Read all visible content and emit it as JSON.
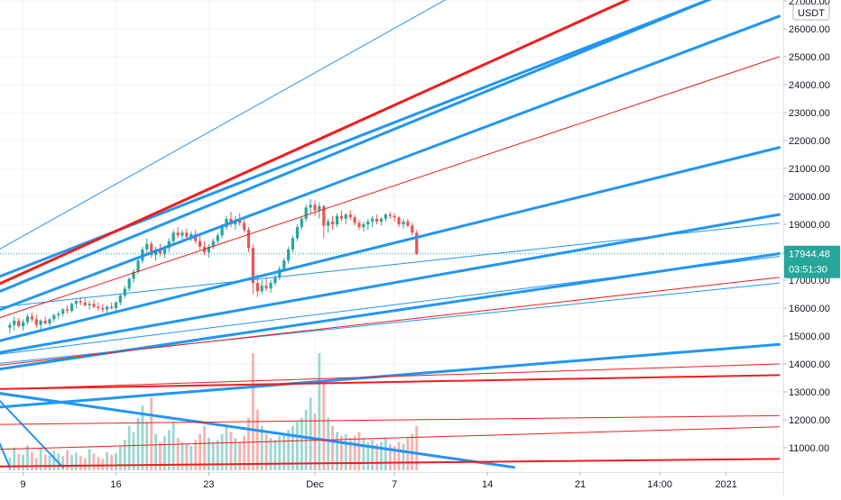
{
  "chart_data": {
    "type": "candlestick",
    "symbol_quote": "USDT",
    "y_ticks": [
      "27000.00",
      "26000.00",
      "25000.00",
      "24000.00",
      "23000.00",
      "22000.00",
      "21000.00",
      "20000.00",
      "19000.00",
      "18000.00",
      "17000.00",
      "16000.00",
      "15000.00",
      "14000.00",
      "13000.00",
      "12000.00",
      "11000.00"
    ],
    "ylim": [
      10200,
      27300
    ],
    "x_ticks": [
      {
        "label": "9",
        "day": 9
      },
      {
        "label": "16",
        "day": 16
      },
      {
        "label": "23",
        "day": 23
      },
      {
        "label": "Dec",
        "day": 31
      },
      {
        "label": "7",
        "day": 37
      },
      {
        "label": "14",
        "day": 44
      },
      {
        "label": "21",
        "day": 51
      },
      {
        "label": "14:00",
        "day": 57
      },
      {
        "label": "2021",
        "day": 62
      }
    ],
    "x_axis_note": "day = days since Nov 1, 2020",
    "last_price": "17944.48",
    "last_price_value": 17944.48,
    "countdown": "03:51:30",
    "grid": true,
    "colors": {
      "up": "#26a69a",
      "down": "#ef5350",
      "blue_line": "#2196f3",
      "red_line": "#f21c1c",
      "last_price_label": "#26a69a",
      "grid": "#f0f3fa",
      "axis_text": "#131722"
    },
    "ohlc": [
      [
        8.0,
        15300,
        15500,
        15100,
        15400
      ],
      [
        8.33,
        15400,
        15700,
        15200,
        15550
      ],
      [
        8.67,
        15550,
        15650,
        15300,
        15350
      ],
      [
        9.0,
        15350,
        15600,
        15200,
        15500
      ],
      [
        9.33,
        15500,
        15800,
        15400,
        15700
      ],
      [
        9.67,
        15700,
        15850,
        15500,
        15600
      ],
      [
        10.0,
        15600,
        15750,
        15300,
        15400
      ],
      [
        10.33,
        15400,
        15600,
        15200,
        15550
      ],
      [
        10.67,
        15550,
        15700,
        15400,
        15450
      ],
      [
        11.0,
        15450,
        15650,
        15350,
        15600
      ],
      [
        11.33,
        15600,
        15800,
        15500,
        15750
      ],
      [
        11.67,
        15750,
        15900,
        15600,
        15800
      ],
      [
        12.0,
        15800,
        16000,
        15700,
        15950
      ],
      [
        12.33,
        15950,
        16100,
        15800,
        15900
      ],
      [
        12.67,
        15900,
        16200,
        15850,
        16150
      ],
      [
        13.0,
        16150,
        16300,
        16000,
        16250
      ],
      [
        13.33,
        16250,
        16400,
        16100,
        16200
      ],
      [
        13.67,
        16200,
        16350,
        16050,
        16100
      ],
      [
        14.0,
        16100,
        16250,
        15950,
        16150
      ],
      [
        14.33,
        16150,
        16300,
        16000,
        16050
      ],
      [
        14.67,
        16050,
        16200,
        15900,
        16000
      ],
      [
        15.0,
        16000,
        16150,
        15850,
        15950
      ],
      [
        15.33,
        15950,
        16100,
        15800,
        16050
      ],
      [
        15.67,
        16050,
        16200,
        15950,
        16000
      ],
      [
        16.0,
        16000,
        16250,
        15900,
        16200
      ],
      [
        16.33,
        16200,
        16500,
        16100,
        16450
      ],
      [
        16.67,
        16450,
        16800,
        16350,
        16700
      ],
      [
        17.0,
        16700,
        17100,
        16600,
        17050
      ],
      [
        17.33,
        17050,
        17400,
        16900,
        17300
      ],
      [
        17.67,
        17300,
        17800,
        17200,
        17700
      ],
      [
        18.0,
        17700,
        18200,
        17600,
        18100
      ],
      [
        18.33,
        18100,
        18500,
        17900,
        18300
      ],
      [
        18.67,
        18300,
        18400,
        17800,
        17900
      ],
      [
        19.0,
        17900,
        18200,
        17700,
        18100
      ],
      [
        19.33,
        18100,
        18300,
        17850,
        17950
      ],
      [
        19.67,
        17950,
        18250,
        17800,
        18150
      ],
      [
        20.0,
        18150,
        18500,
        18000,
        18400
      ],
      [
        20.33,
        18400,
        18800,
        18300,
        18700
      ],
      [
        20.67,
        18700,
        18900,
        18500,
        18600
      ],
      [
        21.0,
        18600,
        18800,
        18450,
        18700
      ],
      [
        21.33,
        18700,
        18850,
        18500,
        18550
      ],
      [
        21.67,
        18550,
        18750,
        18400,
        18650
      ],
      [
        22.0,
        18650,
        18800,
        18300,
        18400
      ],
      [
        22.33,
        18400,
        18600,
        18100,
        18200
      ],
      [
        22.67,
        18200,
        18400,
        17900,
        18000
      ],
      [
        23.0,
        18000,
        18300,
        17800,
        18200
      ],
      [
        23.33,
        18200,
        18500,
        18100,
        18400
      ],
      [
        23.67,
        18400,
        18700,
        18300,
        18600
      ],
      [
        24.0,
        18600,
        19000,
        18500,
        18900
      ],
      [
        24.33,
        18900,
        19300,
        18800,
        19200
      ],
      [
        24.67,
        19200,
        19450,
        18900,
        19000
      ],
      [
        25.0,
        19000,
        19300,
        18800,
        19150
      ],
      [
        25.33,
        19150,
        19400,
        18950,
        19050
      ],
      [
        25.67,
        19050,
        19200,
        18700,
        18800
      ],
      [
        26.0,
        18800,
        18900,
        18000,
        18150
      ],
      [
        26.33,
        18150,
        18300,
        16500,
        16900
      ],
      [
        26.67,
        16900,
        17200,
        16400,
        16600
      ],
      [
        27.0,
        16600,
        17000,
        16500,
        16800
      ],
      [
        27.33,
        16800,
        17100,
        16600,
        16700
      ],
      [
        27.67,
        16700,
        17000,
        16550,
        16900
      ],
      [
        28.0,
        16900,
        17200,
        16800,
        17100
      ],
      [
        28.33,
        17100,
        17500,
        17000,
        17400
      ],
      [
        28.67,
        17400,
        17800,
        17300,
        17700
      ],
      [
        29.0,
        17700,
        18200,
        17600,
        18100
      ],
      [
        29.33,
        18100,
        18600,
        18000,
        18500
      ],
      [
        29.67,
        18500,
        19000,
        18400,
        18900
      ],
      [
        30.0,
        18900,
        19300,
        18800,
        19200
      ],
      [
        30.33,
        19200,
        19700,
        19100,
        19600
      ],
      [
        30.67,
        19600,
        19900,
        19400,
        19700
      ],
      [
        31.0,
        19700,
        19850,
        19300,
        19500
      ],
      [
        31.33,
        19500,
        19800,
        19200,
        19650
      ],
      [
        31.67,
        19650,
        19700,
        18500,
        18950
      ],
      [
        32.0,
        18950,
        19200,
        18700,
        19100
      ],
      [
        32.33,
        19100,
        19300,
        18800,
        19000
      ],
      [
        32.67,
        19000,
        19400,
        18900,
        19300
      ],
      [
        33.0,
        19300,
        19500,
        19100,
        19200
      ],
      [
        33.33,
        19200,
        19400,
        19000,
        19350
      ],
      [
        33.67,
        19350,
        19500,
        19150,
        19250
      ],
      [
        34.0,
        19250,
        19350,
        18950,
        19050
      ],
      [
        34.33,
        19050,
        19150,
        18800,
        18900
      ],
      [
        34.67,
        18900,
        19100,
        18750,
        19000
      ],
      [
        35.0,
        19000,
        19200,
        18800,
        19100
      ],
      [
        35.33,
        19100,
        19300,
        18900,
        19200
      ],
      [
        35.67,
        19200,
        19350,
        19000,
        19100
      ],
      [
        36.0,
        19100,
        19250,
        18950,
        19200
      ],
      [
        36.33,
        19200,
        19400,
        19100,
        19350
      ],
      [
        36.67,
        19350,
        19450,
        19200,
        19300
      ],
      [
        37.0,
        19300,
        19400,
        19100,
        19250
      ],
      [
        37.33,
        19250,
        19300,
        18900,
        19000
      ],
      [
        37.67,
        19000,
        19200,
        18850,
        19100
      ],
      [
        38.0,
        19100,
        19200,
        18900,
        18950
      ],
      [
        38.33,
        18950,
        19050,
        18600,
        18700
      ],
      [
        38.67,
        18700,
        18800,
        17900,
        17944.48
      ]
    ],
    "volume": [
      [
        8.0,
        320
      ],
      [
        8.33,
        560
      ],
      [
        8.67,
        410
      ],
      [
        9.0,
        380
      ],
      [
        9.33,
        620
      ],
      [
        9.67,
        450
      ],
      [
        10.0,
        300
      ],
      [
        10.33,
        540
      ],
      [
        10.67,
        390
      ],
      [
        11.0,
        360
      ],
      [
        11.33,
        480
      ],
      [
        11.67,
        420
      ],
      [
        12.0,
        350
      ],
      [
        12.33,
        500
      ],
      [
        12.67,
        380
      ],
      [
        13.0,
        440
      ],
      [
        13.33,
        360
      ],
      [
        13.67,
        300
      ],
      [
        14.0,
        520
      ],
      [
        14.33,
        410
      ],
      [
        14.67,
        330
      ],
      [
        15.0,
        280
      ],
      [
        15.33,
        450
      ],
      [
        15.67,
        390
      ],
      [
        16.0,
        420
      ],
      [
        16.33,
        600
      ],
      [
        16.67,
        750
      ],
      [
        17.0,
        1100
      ],
      [
        17.33,
        950
      ],
      [
        17.67,
        1300
      ],
      [
        18.0,
        1600
      ],
      [
        18.33,
        1200
      ],
      [
        18.67,
        1800
      ],
      [
        19.0,
        900
      ],
      [
        19.33,
        700
      ],
      [
        19.67,
        850
      ],
      [
        20.0,
        1000
      ],
      [
        20.33,
        1200
      ],
      [
        20.67,
        800
      ],
      [
        21.0,
        700
      ],
      [
        21.33,
        650
      ],
      [
        21.67,
        600
      ],
      [
        22.0,
        750
      ],
      [
        22.33,
        900
      ],
      [
        22.67,
        1100
      ],
      [
        23.0,
        800
      ],
      [
        23.33,
        700
      ],
      [
        23.67,
        750
      ],
      [
        24.0,
        900
      ],
      [
        24.33,
        1100
      ],
      [
        24.67,
        950
      ],
      [
        25.0,
        800
      ],
      [
        25.33,
        700
      ],
      [
        25.67,
        850
      ],
      [
        26.0,
        1300
      ],
      [
        26.33,
        2900
      ],
      [
        26.67,
        1500
      ],
      [
        27.0,
        1100
      ],
      [
        27.33,
        900
      ],
      [
        27.67,
        800
      ],
      [
        28.0,
        750
      ],
      [
        28.33,
        850
      ],
      [
        28.67,
        900
      ],
      [
        29.0,
        1000
      ],
      [
        29.33,
        1100
      ],
      [
        29.67,
        1200
      ],
      [
        30.0,
        1300
      ],
      [
        30.33,
        1500
      ],
      [
        30.67,
        1800
      ],
      [
        31.0,
        1400
      ],
      [
        31.33,
        2900
      ],
      [
        31.67,
        2200
      ],
      [
        32.0,
        1300
      ],
      [
        32.33,
        1100
      ],
      [
        32.67,
        950
      ],
      [
        33.0,
        850
      ],
      [
        33.33,
        900
      ],
      [
        33.67,
        800
      ],
      [
        34.0,
        850
      ],
      [
        34.33,
        950
      ],
      [
        34.67,
        800
      ],
      [
        35.0,
        700
      ],
      [
        35.33,
        750
      ],
      [
        35.67,
        650
      ],
      [
        36.0,
        700
      ],
      [
        36.33,
        800
      ],
      [
        36.67,
        650
      ],
      [
        37.0,
        600
      ],
      [
        37.33,
        700
      ],
      [
        37.67,
        650
      ],
      [
        38.0,
        800
      ],
      [
        38.33,
        900
      ],
      [
        38.67,
        1100
      ]
    ],
    "trendlines": [
      {
        "color": "blue",
        "width": 3,
        "pts": [
          [
            0.6,
            15900
          ],
          [
            61,
            27100
          ]
        ]
      },
      {
        "color": "blue",
        "width": 3,
        "pts": [
          [
            0.6,
            15300
          ],
          [
            61,
            27100
          ]
        ]
      },
      {
        "color": "blue",
        "width": 3,
        "pts": [
          [
            0.6,
            14750
          ],
          [
            66,
            26450
          ]
        ]
      },
      {
        "color": "blue",
        "width": 3,
        "pts": [
          [
            0.6,
            14050
          ],
          [
            66,
            21750
          ]
        ]
      },
      {
        "color": "blue",
        "width": 3,
        "pts": [
          [
            0.6,
            13850
          ],
          [
            66,
            19350
          ]
        ]
      },
      {
        "color": "blue",
        "width": 3,
        "pts": [
          [
            0.6,
            13350
          ],
          [
            66,
            17950
          ]
        ]
      },
      {
        "color": "blue",
        "width": 3,
        "pts": [
          [
            0.6,
            12200
          ],
          [
            66,
            14700
          ]
        ]
      },
      {
        "color": "blue",
        "width": 3,
        "pts": [
          [
            0.6,
            13400
          ],
          [
            46,
            10300
          ]
        ]
      },
      {
        "color": "blue",
        "width": 2,
        "pts": [
          [
            0.6,
            18500
          ],
          [
            8,
            10300
          ]
        ]
      },
      {
        "color": "blue",
        "width": 2,
        "pts": [
          [
            0.6,
            16000
          ],
          [
            12,
            10300
          ]
        ]
      },
      {
        "color": "blue",
        "width": 2,
        "pts": [
          [
            0.6,
            13800
          ],
          [
            6,
            10300
          ]
        ]
      },
      {
        "color": "blue",
        "width": 1,
        "pts": [
          [
            0.6,
            16350
          ],
          [
            42,
            27350
          ]
        ]
      },
      {
        "color": "blue",
        "width": 1,
        "pts": [
          [
            0.6,
            15700
          ],
          [
            66,
            19050
          ]
        ]
      },
      {
        "color": "blue",
        "width": 1,
        "pts": [
          [
            0.6,
            13950
          ],
          [
            66,
            17850
          ]
        ]
      },
      {
        "color": "blue",
        "width": 1,
        "pts": [
          [
            0.6,
            13700
          ],
          [
            66,
            16900
          ]
        ]
      },
      {
        "color": "red",
        "width": 3,
        "pts": [
          [
            0.6,
            15450
          ],
          [
            56,
            27350
          ]
        ]
      },
      {
        "color": "red",
        "width": 1,
        "pts": [
          [
            0.6,
            14600
          ],
          [
            66,
            25000
          ]
        ]
      },
      {
        "color": "red",
        "width": 1,
        "pts": [
          [
            0.6,
            13600
          ],
          [
            66,
            17100
          ]
        ]
      },
      {
        "color": "red",
        "width": 1,
        "pts": [
          [
            0.6,
            13000
          ],
          [
            66,
            14000
          ]
        ]
      },
      {
        "color": "red",
        "width": 2,
        "pts": [
          [
            0.6,
            13050
          ],
          [
            66,
            13600
          ]
        ]
      },
      {
        "color": "red",
        "width": 1,
        "pts": [
          [
            0.6,
            11800
          ],
          [
            66,
            12150
          ]
        ]
      },
      {
        "color": "red",
        "width": 1,
        "pts": [
          [
            0.6,
            10850
          ],
          [
            66,
            11750
          ]
        ]
      },
      {
        "color": "red",
        "width": 2,
        "pts": [
          [
            0.6,
            10300
          ],
          [
            66,
            10600
          ]
        ]
      },
      {
        "color": "red",
        "width": 2,
        "pts": [
          [
            0.6,
            10300
          ],
          [
            6,
            10250
          ]
        ]
      }
    ]
  }
}
